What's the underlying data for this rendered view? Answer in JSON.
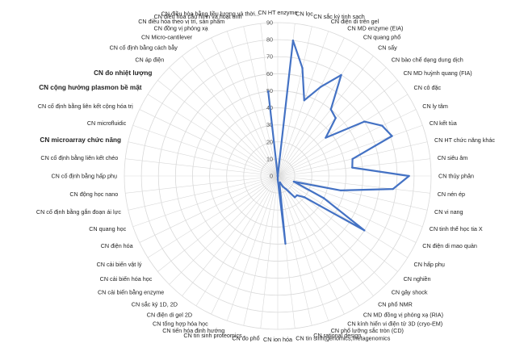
{
  "chart_data": {
    "type": "radar",
    "r_range": [
      0,
      90
    ],
    "r_ticks": [
      0,
      10,
      20,
      30,
      40,
      50,
      60,
      70,
      80,
      90
    ],
    "grid": true,
    "line_color": "#4472c4",
    "categories": [
      "CN HT enzyme",
      "CN lọc",
      "CN sắc ký tinh sạch",
      "CN điện di trên gel",
      "CN MD enzyme (EIA)",
      "CN quang phổ",
      "CN sấy",
      "CN bào chế dạng dung dịch",
      "CN MD huỳnh quang (FIA)",
      "CN cô đặc",
      "CN ly tâm",
      "CN kết tủa",
      "CN HT chức năng khác",
      "CN siêu âm",
      "CN thủy phân",
      "CN nén ép",
      "CN vi nang",
      "CN tinh thể học tia X",
      "CN điện di mao quản",
      "CN hấp phụ",
      "CN nghiền",
      "CN gây shock",
      "CN phổ NMR",
      "CN MD đồng vị phóng xạ (RIA)",
      "CN kính hiển vi điện tử 3D (cryo-EM)",
      "CN phổ lưỡng sắc tròn (CD)",
      "CN rational design",
      "CN tin sinh(genomics,metagenomics",
      "CN ion hóa",
      "CN đo phổ",
      "CN tin sinh proteomics",
      "CN tiến hóa định hướng",
      "CN tổng hợp hóa học",
      "CN điện di gel 2D",
      "CN sắc ký 1D, 2D",
      "CN cải biến bằng enzyme",
      "CN cải biến hóa học",
      "CN cải biến vật lý",
      "CN điện hóa",
      "CN quang học",
      "CN cố định bằng gắn đoạn ái lực",
      "CN động học nano",
      "CN cố định bằng hấp phụ",
      "CN cố định bằng liên kết chéo",
      "CN microarray chức năng",
      "CN microfluidic",
      "CN cố định bằng liên kết cộng hóa trị",
      "CN cộng hưởng plasmon bề mặt",
      "CN đo nhiệt lượng",
      "CN áp điện",
      "CN cố định bằng cách bẫy",
      "CN Micro-cantilever",
      "CN đồng vị phóng xạ",
      "CN điều hòa theo vị trí, sản phẩm",
      "CN điều hòa cấu hình và hoạt tính",
      "CN điều hòa bằng liều lượng và thời..."
    ],
    "values": [
      0,
      80,
      65,
      47,
      58,
      70,
      50,
      48,
      36,
      60,
      68,
      71,
      45,
      44,
      77,
      68,
      38,
      10,
      30,
      60,
      20,
      16,
      16,
      9,
      7,
      4,
      5,
      40,
      2,
      0,
      0,
      0,
      0,
      0,
      0,
      0,
      0,
      0,
      0,
      0,
      0,
      0,
      0,
      0,
      0,
      0,
      0,
      0,
      0,
      0,
      0,
      0,
      0,
      0,
      0,
      50
    ]
  }
}
